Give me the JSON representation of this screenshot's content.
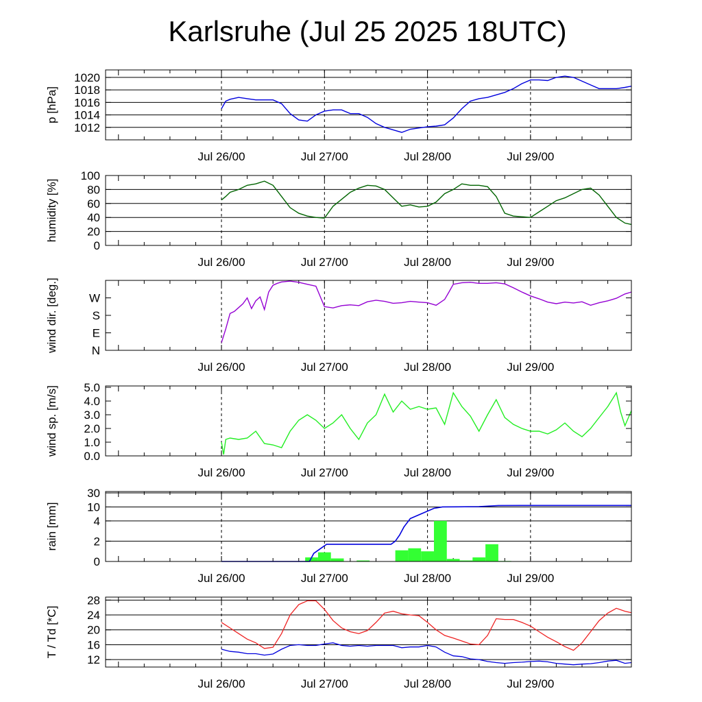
{
  "title": "Karlsruhe (Jul 25 2025 18UTC)",
  "colors": {
    "pressure": "#0000dd",
    "humidity": "#006400",
    "wind_dir": "#9400d3",
    "wind_speed": "#22ee22",
    "rain_bars": "#33ff33",
    "rain_cum": "#0000dd",
    "temperature": "#ee2222",
    "dewpoint": "#0000dd"
  },
  "x_ticks": [
    "Jul 26/00",
    "Jul 27/00",
    "Jul 28/00",
    "Jul 29/00"
  ],
  "chart_data": [
    {
      "type": "line",
      "id": "pressure",
      "ylabel": "p [hPa]",
      "ylim": [
        1010,
        1021.2
      ],
      "yticks": [
        "1012",
        "1014",
        "1016",
        "1018",
        "1020"
      ],
      "yticks_values": [
        1012,
        1014,
        1016,
        1018,
        1020
      ],
      "grid": true,
      "x_hours": [
        0,
        1,
        2,
        4,
        6,
        8,
        10,
        12,
        14,
        16,
        18,
        20,
        22,
        24,
        26,
        28,
        30,
        32,
        34,
        36,
        38,
        40,
        42,
        44,
        46,
        48,
        50,
        52,
        54,
        56,
        58,
        60,
        62,
        64,
        66,
        68,
        70,
        72,
        74,
        76,
        78,
        80,
        82,
        84,
        86,
        88,
        90,
        92,
        94,
        95.5
      ],
      "series": [
        {
          "values": [
            1015.0,
            1016.2,
            1016.5,
            1016.8,
            1016.6,
            1016.4,
            1016.4,
            1016.4,
            1015.8,
            1014.2,
            1013.2,
            1013.0,
            1014.0,
            1014.6,
            1014.8,
            1014.8,
            1014.2,
            1014.2,
            1013.6,
            1012.6,
            1012.0,
            1011.6,
            1011.2,
            1011.7,
            1011.9,
            1012.1,
            1012.2,
            1012.4,
            1013.5,
            1015.0,
            1016.2,
            1016.6,
            1016.8,
            1017.2,
            1017.6,
            1018.2,
            1019.0,
            1019.6,
            1019.6,
            1019.5,
            1020.0,
            1020.2,
            1020.0,
            1019.4,
            1018.8,
            1018.2,
            1018.2,
            1018.2,
            1018.4,
            1018.6
          ]
        }
      ]
    },
    {
      "type": "line",
      "id": "humidity",
      "ylabel": "humidity [%]",
      "ylim": [
        0,
        100
      ],
      "yticks": [
        "0",
        "20",
        "40",
        "60",
        "80",
        "100"
      ],
      "yticks_values": [
        0,
        20,
        40,
        60,
        80,
        100
      ],
      "grid": true,
      "x_hours": [
        0,
        1,
        2,
        4,
        6,
        8,
        10,
        12,
        14,
        16,
        18,
        20,
        22,
        24,
        26,
        28,
        30,
        32,
        34,
        36,
        38,
        40,
        42,
        44,
        46,
        48,
        50,
        52,
        54,
        56,
        58,
        60,
        62,
        64,
        66,
        68,
        70,
        72,
        74,
        76,
        78,
        80,
        82,
        84,
        86,
        88,
        90,
        92,
        94,
        95.5
      ],
      "series": [
        {
          "values": [
            65,
            70,
            76,
            80,
            86,
            88,
            92,
            86,
            70,
            54,
            46,
            42,
            40,
            39,
            56,
            66,
            76,
            82,
            86,
            85,
            80,
            68,
            56,
            58,
            55,
            56,
            62,
            74,
            80,
            88,
            86,
            86,
            84,
            70,
            46,
            42,
            41,
            40,
            48,
            56,
            64,
            68,
            74,
            80,
            82,
            72,
            56,
            40,
            32,
            30
          ]
        }
      ]
    },
    {
      "type": "line",
      "id": "wind_dir",
      "ylabel": "wind dir. [deg.]",
      "ylim": [
        0,
        360
      ],
      "yticks": [
        "N",
        "E",
        "S",
        "W"
      ],
      "yticks_values": [
        0,
        90,
        180,
        270
      ],
      "grid": false,
      "x_hours": [
        0,
        1,
        2,
        3,
        4,
        5,
        6,
        7,
        8,
        9,
        10,
        11,
        12,
        13,
        14,
        16,
        18,
        20,
        22,
        24,
        26,
        28,
        30,
        32,
        34,
        36,
        38,
        40,
        42,
        44,
        46,
        48,
        50,
        52,
        53,
        54,
        56,
        58,
        60,
        62,
        64,
        66,
        68,
        70,
        72,
        74,
        76,
        78,
        80,
        82,
        84,
        86,
        88,
        90,
        92,
        94,
        95.5
      ],
      "series": [
        {
          "values": [
            40,
            110,
            190,
            200,
            220,
            240,
            270,
            215,
            255,
            275,
            210,
            300,
            335,
            345,
            352,
            356,
            350,
            340,
            330,
            225,
            218,
            230,
            234,
            230,
            250,
            258,
            252,
            242,
            245,
            252,
            248,
            245,
            232,
            262,
            300,
            340,
            348,
            350,
            345,
            345,
            348,
            342,
            322,
            300,
            280,
            265,
            248,
            240,
            248,
            244,
            250,
            232,
            245,
            255,
            268,
            290,
            300
          ]
        }
      ]
    },
    {
      "type": "line",
      "id": "wind_speed",
      "ylabel": "wind sp. [m/s]",
      "ylim": [
        0,
        5.1
      ],
      "yticks": [
        "0.0",
        "1.0",
        "2.0",
        "3.0",
        "4.0",
        "5.0"
      ],
      "yticks_values": [
        0,
        1,
        2,
        3,
        4,
        5
      ],
      "grid": false,
      "x_hours": [
        0,
        0.5,
        1,
        2,
        4,
        6,
        8,
        10,
        12,
        14,
        16,
        18,
        20,
        22,
        24,
        26,
        28,
        30,
        32,
        34,
        36,
        38,
        40,
        42,
        44,
        46,
        48,
        50,
        52,
        54,
        56,
        58,
        60,
        62,
        64,
        66,
        68,
        70,
        72,
        74,
        76,
        78,
        80,
        82,
        84,
        86,
        88,
        90,
        92,
        93,
        94,
        95.5
      ],
      "series": [
        {
          "values": [
            1.0,
            0.1,
            1.2,
            1.3,
            1.2,
            1.3,
            1.8,
            0.9,
            0.8,
            0.6,
            1.8,
            2.6,
            3.0,
            2.6,
            2.0,
            2.4,
            3.0,
            2.0,
            1.2,
            2.4,
            3.0,
            4.5,
            3.2,
            4.0,
            3.4,
            3.6,
            3.4,
            3.5,
            2.3,
            4.6,
            3.6,
            2.9,
            1.8,
            3.0,
            4.1,
            2.8,
            2.3,
            2.0,
            1.8,
            1.8,
            1.6,
            1.9,
            2.4,
            1.8,
            1.4,
            2.0,
            2.8,
            3.6,
            4.6,
            3.2,
            2.2,
            3.3
          ]
        }
      ]
    },
    {
      "type": "bar+line",
      "id": "rain",
      "ylabel": "rain [mm]",
      "yticks": [
        "0",
        "2",
        "4",
        "10",
        "30"
      ],
      "yticks_values": [
        0,
        2,
        4,
        10,
        30
      ],
      "grid": true,
      "bars": {
        "start_hours": [
          19.5,
          22.5,
          25.5,
          31.5,
          40.5,
          43.5,
          46.5,
          49.5,
          52.5,
          55.5,
          58.5,
          61.5,
          64.5
        ],
        "width_hours": 3,
        "values": [
          0.4,
          0.9,
          0.3,
          0.1,
          1.1,
          1.3,
          1.0,
          4.0,
          0.25,
          0.1,
          0.4,
          1.7,
          0.05
        ]
      },
      "cumulative": {
        "x_hours": [
          0,
          20.5,
          21.5,
          23.5,
          24.5,
          29.5,
          34.5,
          39.5,
          40.5,
          41.5,
          42.5,
          44,
          46.5,
          49.5,
          51.5,
          55,
          60,
          64.5,
          70,
          95.5
        ],
        "values": [
          0,
          0,
          0.8,
          1.4,
          1.7,
          1.7,
          1.7,
          1.7,
          2.0,
          2.6,
          3.4,
          5.0,
          7.0,
          9.4,
          10.0,
          10.1,
          10.4,
          12.0,
          12.1,
          12.1
        ]
      }
    },
    {
      "type": "line",
      "id": "temperature",
      "ylabel": "T / Td [*C]",
      "ylim": [
        10,
        28.8
      ],
      "yticks": [
        "12",
        "16",
        "20",
        "24",
        "28"
      ],
      "yticks_values": [
        12,
        16,
        20,
        24,
        28
      ],
      "grid": true,
      "x_hours": [
        0,
        2,
        4,
        6,
        8,
        10,
        12,
        14,
        16,
        18,
        20,
        22,
        24,
        26,
        28,
        30,
        32,
        34,
        36,
        38,
        40,
        42,
        44,
        46,
        48,
        50,
        52,
        54,
        56,
        58,
        60,
        62,
        64,
        66,
        68,
        70,
        72,
        74,
        76,
        78,
        80,
        82,
        84,
        86,
        88,
        90,
        92,
        94,
        95.5
      ],
      "series": [
        {
          "values": [
            22.0,
            20.5,
            19.0,
            17.5,
            16.5,
            15.0,
            15.3,
            19.0,
            24.0,
            26.8,
            27.8,
            27.8,
            25.5,
            22.5,
            20.5,
            19.5,
            19.0,
            19.8,
            22.0,
            24.5,
            25.0,
            24.3,
            24.0,
            23.8,
            22.0,
            20.0,
            18.5,
            17.8,
            17.0,
            16.2,
            16.0,
            18.5,
            23.0,
            22.8,
            22.8,
            22.0,
            21.0,
            19.5,
            18.0,
            16.8,
            15.5,
            14.5,
            16.5,
            19.5,
            22.5,
            24.5,
            25.8,
            25.0,
            24.6
          ]
        },
        {
          "values": [
            14.8,
            14.2,
            14.0,
            13.6,
            13.6,
            13.2,
            13.5,
            14.8,
            15.8,
            16.0,
            15.8,
            15.8,
            16.2,
            16.5,
            15.8,
            15.6,
            15.8,
            15.6,
            15.8,
            15.8,
            15.8,
            15.2,
            15.4,
            15.4,
            15.8,
            15.4,
            14.0,
            13.0,
            12.8,
            12.2,
            12.0,
            11.5,
            11.2,
            11.0,
            11.2,
            11.3,
            11.5,
            11.6,
            11.4,
            11.0,
            10.8,
            10.6,
            10.8,
            10.9,
            11.2,
            11.6,
            11.8,
            11.0,
            11.2
          ]
        }
      ]
    }
  ]
}
